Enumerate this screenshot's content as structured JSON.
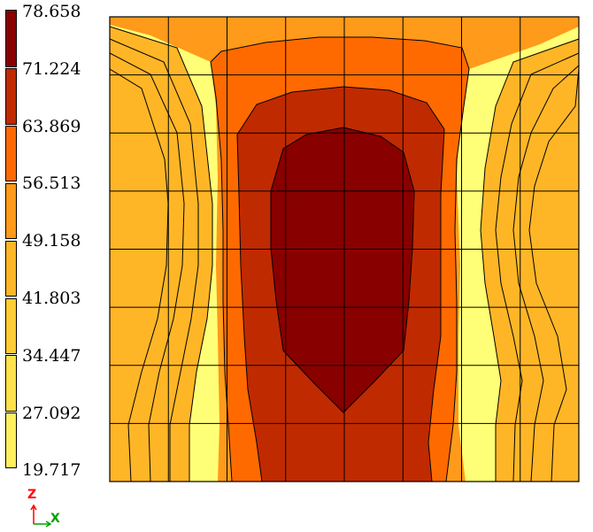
{
  "legend": {
    "values": [
      "78.658",
      "71.224",
      "63.869",
      "56.513",
      "49.158",
      "41.803",
      "34.447",
      "27.092",
      "19.717"
    ],
    "colors": [
      "#880000",
      "#c02a00",
      "#ff6a00",
      "#ff9a1a",
      "#ffb626",
      "#ffcc33",
      "#ffe24a",
      "#ffef5f",
      "#ffff77"
    ]
  },
  "plot": {
    "band_colors": {
      "level1": "#ffff77",
      "level2": "#ffef5f",
      "level3": "#ffe24a",
      "level4": "#ffcc33",
      "level5": "#ffb626",
      "level6": "#ff9a1a",
      "level7": "#ff6a00",
      "level8": "#c02a00",
      "level9": "#880000"
    },
    "mesh_columns": 8,
    "mesh_rows": 8
  },
  "axis_triad": {
    "vertical_label": "Z",
    "horizontal_label": "X",
    "vertical_color": "#ff0000",
    "horizontal_color": "#00a000"
  }
}
